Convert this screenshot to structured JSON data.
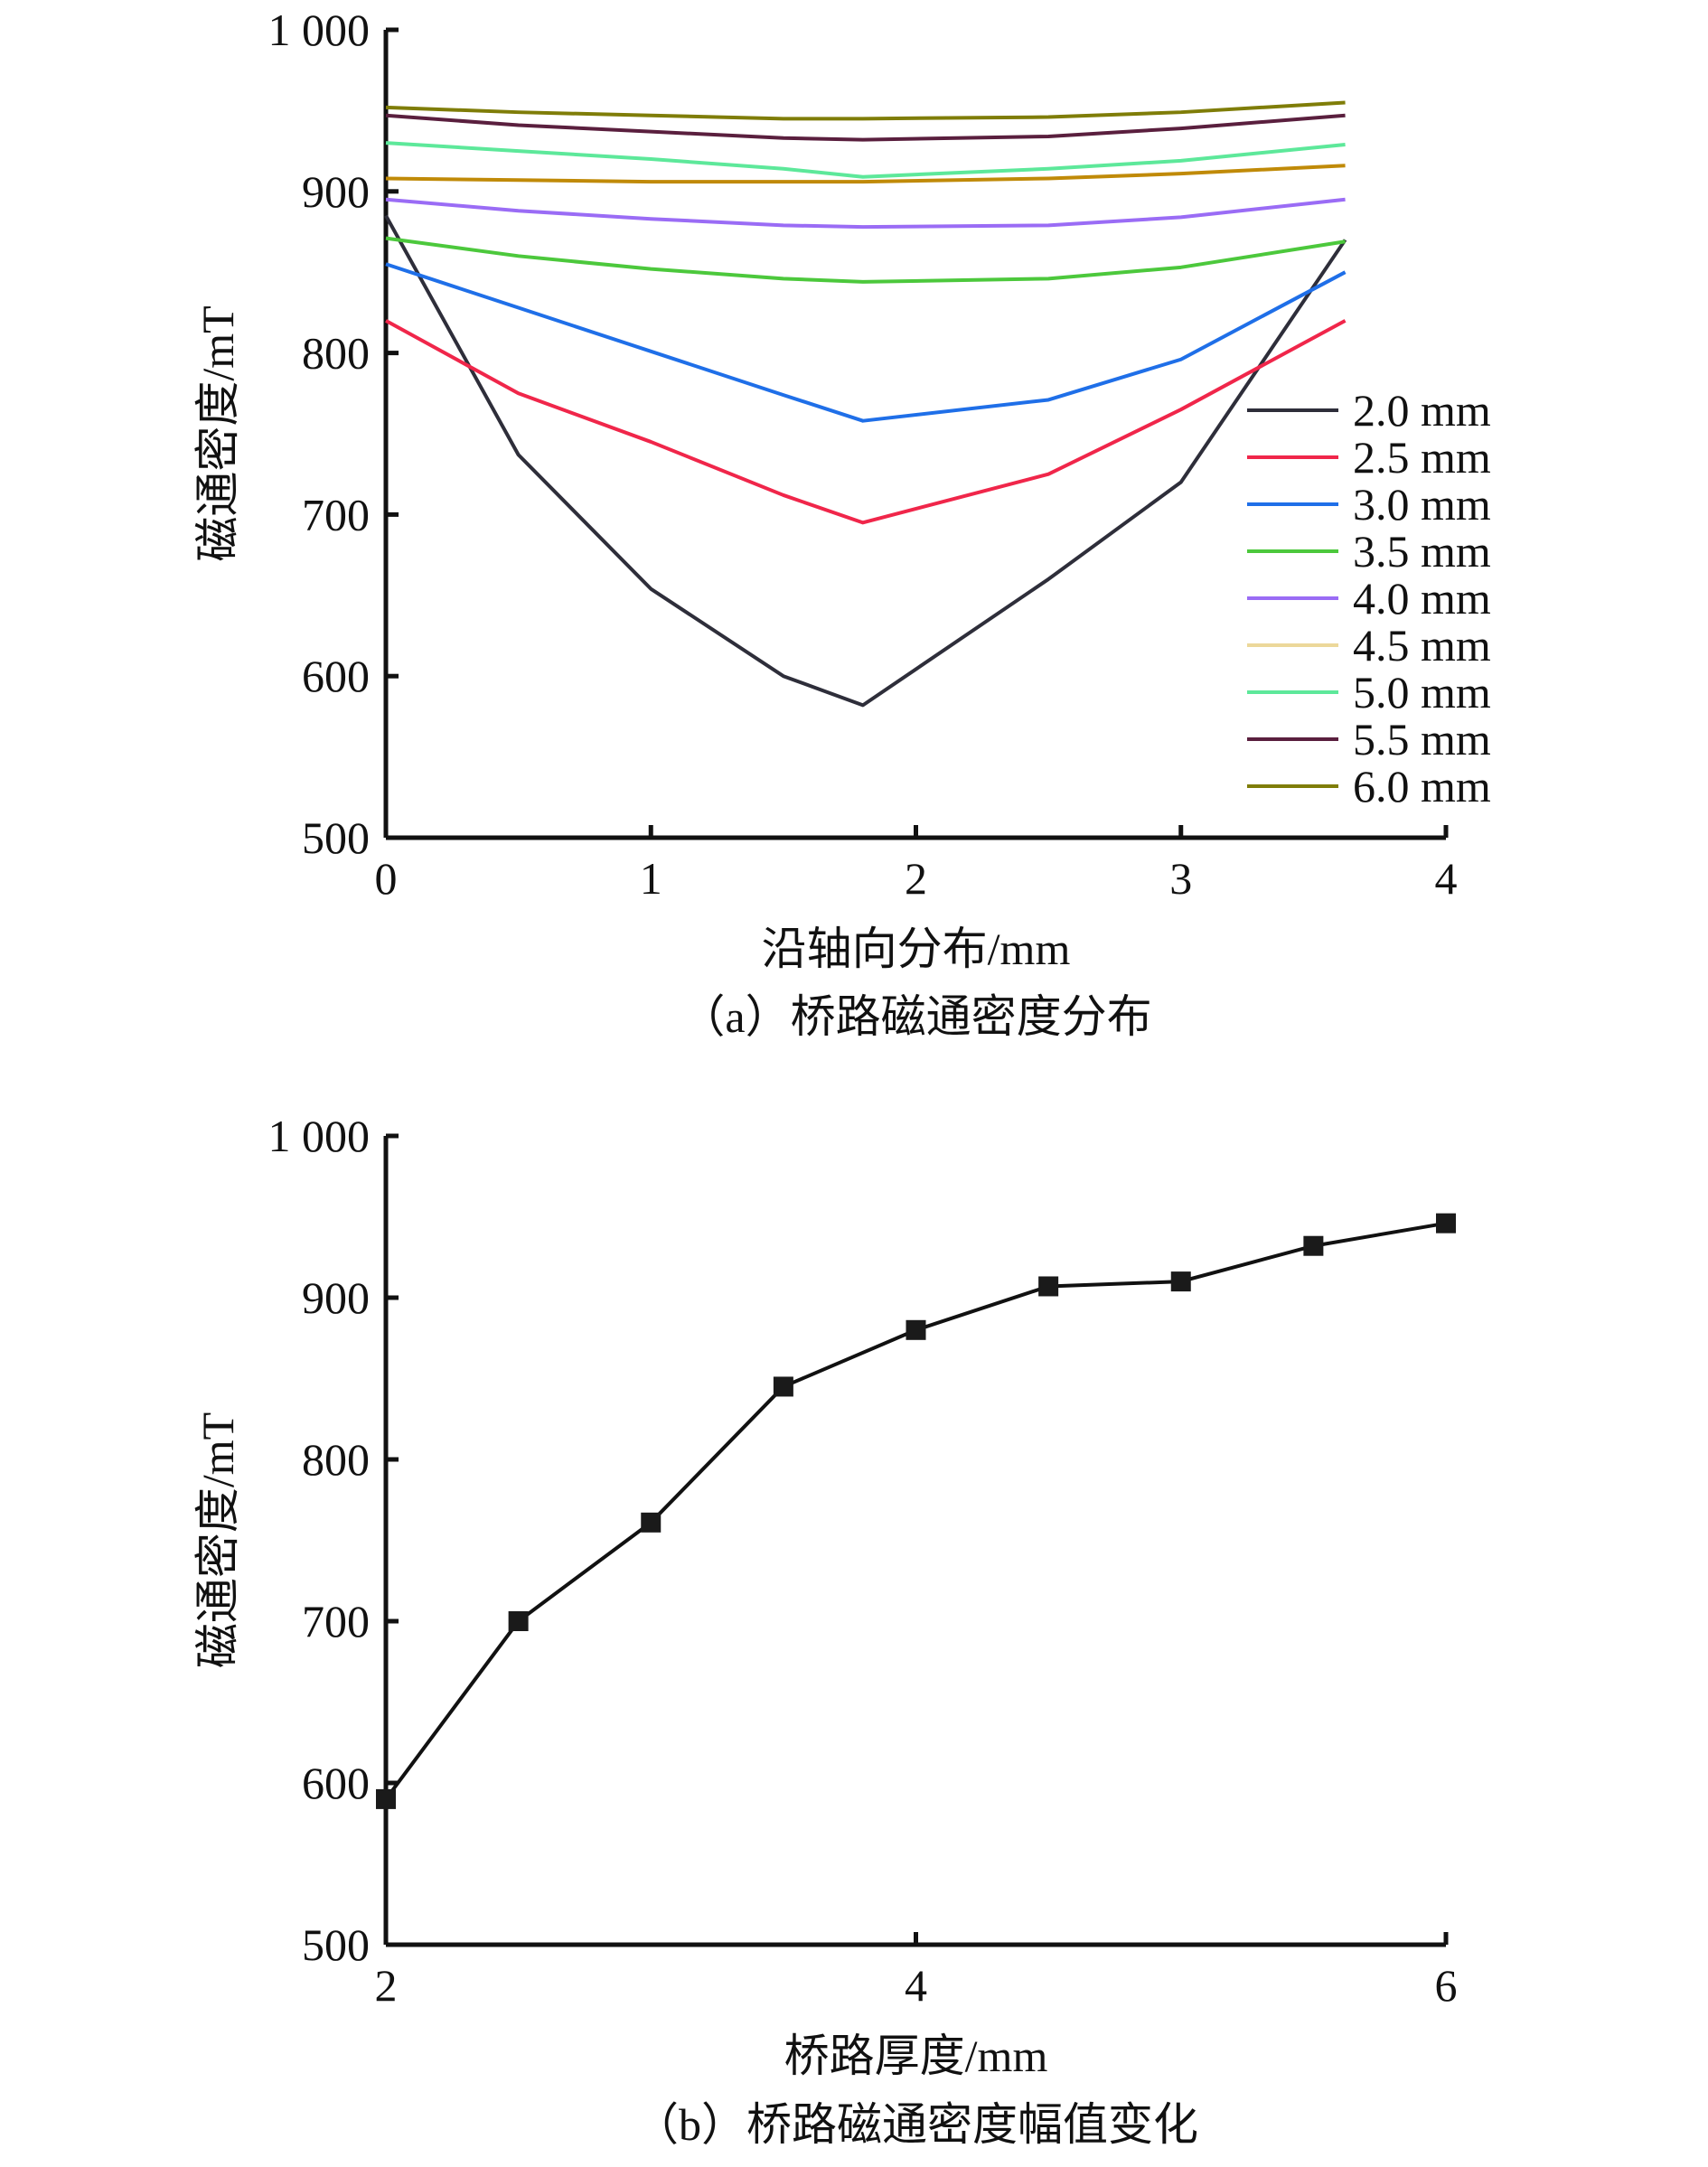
{
  "chart_data": [
    {
      "type": "line",
      "title": "（a）桥路磁通密度分布",
      "xlabel": "沿轴向分布/mm",
      "ylabel": "磁通密度/mT",
      "xlim": [
        0,
        4
      ],
      "ylim": [
        500,
        1000
      ],
      "xticks": [
        "0",
        "1",
        "2",
        "3",
        "4"
      ],
      "yticks": [
        "500",
        "600",
        "700",
        "800",
        "900",
        "1 000"
      ],
      "legend_position": "right",
      "x": [
        0,
        0.5,
        1,
        1.5,
        1.8,
        2.5,
        3,
        3.62
      ],
      "series": [
        {
          "name": "2.0 mm",
          "color": "#2e2e3a",
          "values": [
            885,
            737,
            654,
            600,
            582,
            660,
            720,
            870
          ]
        },
        {
          "name": "2.5 mm",
          "color": "#f0264a",
          "values": [
            820,
            775,
            745,
            712,
            695,
            725,
            765,
            820
          ]
        },
        {
          "name": "3.0 mm",
          "color": "#1f6fe8",
          "values": [
            855,
            828,
            801,
            774,
            758,
            771,
            796,
            850
          ]
        },
        {
          "name": "3.5 mm",
          "color": "#4cc83c",
          "values": [
            871,
            860,
            852,
            846,
            844,
            846,
            853,
            869
          ]
        },
        {
          "name": "4.0 mm",
          "color": "#9a6cf5",
          "values": [
            895,
            888,
            883,
            879,
            878,
            879,
            884,
            895
          ]
        },
        {
          "name": "4.5 mm",
          "color": "#c08a08",
          "legend_color": "#ecd89a",
          "values": [
            908,
            907,
            906,
            906,
            906,
            908,
            911,
            916
          ]
        },
        {
          "name": "5.0 mm",
          "color": "#5de89a",
          "values": [
            930,
            925,
            920,
            914,
            909,
            914,
            919,
            929
          ]
        },
        {
          "name": "5.5 mm",
          "color": "#5a1f3e",
          "values": [
            947,
            941,
            937,
            933,
            932,
            934,
            939,
            947
          ]
        },
        {
          "name": "6.0 mm",
          "color": "#7f7d08",
          "values": [
            952,
            949,
            947,
            945,
            945,
            946,
            949,
            955
          ]
        }
      ]
    },
    {
      "type": "line",
      "title": "（b）桥路磁通密度幅值变化",
      "xlabel": "桥路厚度/mm",
      "ylabel": "磁通密度/mT",
      "xlim": [
        2,
        6
      ],
      "ylim": [
        500,
        1000
      ],
      "xticks": [
        "2",
        "4",
        "6"
      ],
      "yticks": [
        "500",
        "600",
        "700",
        "800",
        "900",
        "1 000"
      ],
      "x": [
        2,
        2.5,
        3,
        3.5,
        4,
        4.5,
        5,
        5.5,
        6
      ],
      "values": [
        590,
        700,
        761,
        845,
        880,
        907,
        910,
        932,
        946
      ]
    }
  ]
}
